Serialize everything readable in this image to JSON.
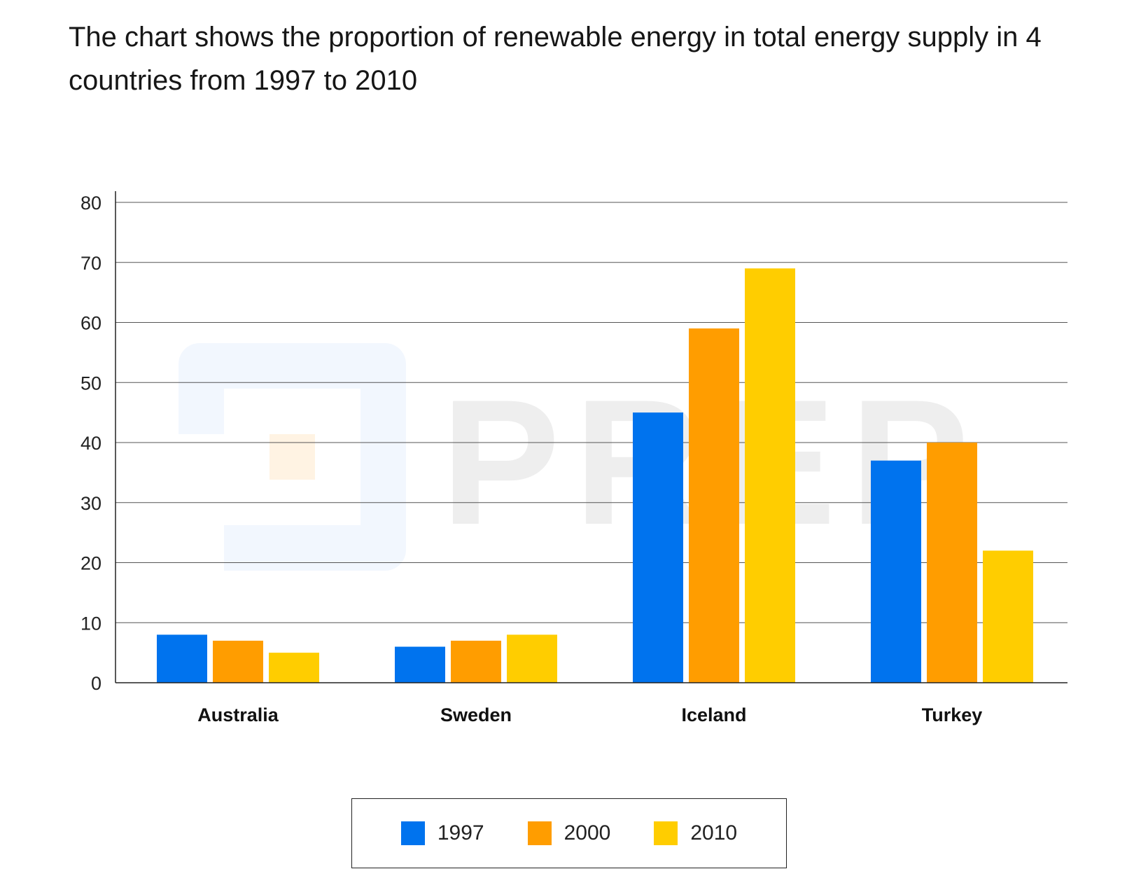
{
  "title": "The chart shows the proportion of renewable energy in total energy supply in 4 countries from 1997 to 2010",
  "watermark": "PREP",
  "colors": {
    "s1997": "#0073EE",
    "s2000": "#FF9D00",
    "s2010": "#FFCD00"
  },
  "chart_data": {
    "type": "bar",
    "title": "The chart shows the proportion of renewable energy in total energy supply in 4 countries from 1997 to 2010",
    "xlabel": "",
    "ylabel": "",
    "ylim": [
      0,
      80
    ],
    "yticks": [
      0,
      10,
      20,
      30,
      40,
      50,
      60,
      70,
      80
    ],
    "grid": true,
    "legend": "bottom-center",
    "categories": [
      "Australia",
      "Sweden",
      "Iceland",
      "Turkey"
    ],
    "series": [
      {
        "name": "1997",
        "color": "#0073EE",
        "values": [
          8,
          6,
          45,
          37
        ]
      },
      {
        "name": "2000",
        "color": "#FF9D00",
        "values": [
          7,
          7,
          59,
          40
        ]
      },
      {
        "name": "2010",
        "color": "#FFCD00",
        "values": [
          5,
          8,
          69,
          22
        ]
      }
    ]
  }
}
